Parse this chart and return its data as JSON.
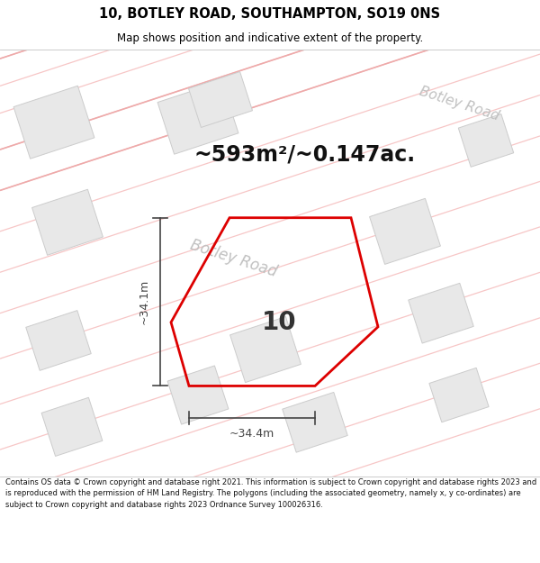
{
  "title_line1": "10, BOTLEY ROAD, SOUTHAMPTON, SO19 0NS",
  "title_line2": "Map shows position and indicative extent of the property.",
  "area_text": "~593m²/~0.147ac.",
  "dim_vertical": "~34.1m",
  "dim_horizontal": "~34.4m",
  "label_number": "10",
  "road_label": "Botley Road",
  "footer_text": "Contains OS data © Crown copyright and database right 2021. This information is subject to Crown copyright and database rights 2023 and is reproduced with the permission of HM Land Registry. The polygons (including the associated geometry, namely x, y co-ordinates) are subject to Crown copyright and database rights 2023 Ordnance Survey 100026316.",
  "bg_color": "#ffffff",
  "map_bg": "#f8f8f8",
  "building_fill": "#e8e8e8",
  "building_edge": "#cccccc",
  "highlight_edge": "#dd0000",
  "road_label_color": "#c0c0c0",
  "title_color": "#000000",
  "footer_color": "#111111",
  "dim_color": "#444444",
  "road_line_color": "#f5b8b8",
  "road_line_color2": "#f0c0c0"
}
